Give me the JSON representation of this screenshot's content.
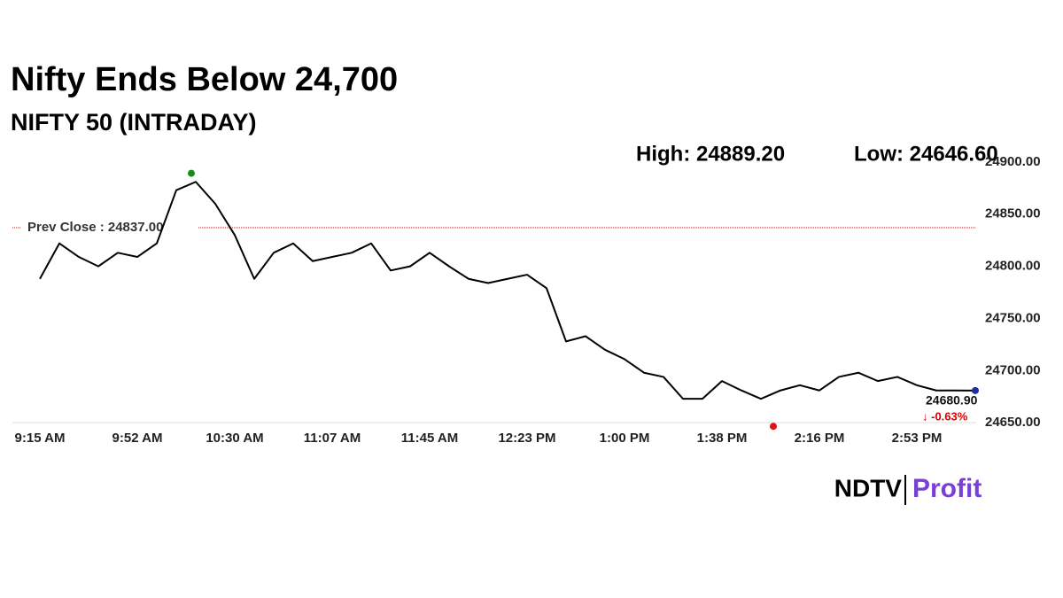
{
  "chart_data": {
    "type": "line",
    "title": "Nifty Ends Below 24,700",
    "subtitle": "NIFTY 50 (INTRADAY)",
    "high_text": "High: 24889.20",
    "high": 24889.2,
    "low_text": "Low: 24646.60",
    "low": 24646.6,
    "prev_close_text": "Prev Close : 24837.00",
    "prev_close": 24837,
    "last_price_text": "24680.90",
    "change_text": "↓ -0.63%",
    "categories": [
      "9:15 AM",
      null,
      null,
      null,
      null,
      "9:52 AM",
      null,
      null,
      null,
      null,
      "10:30 AM",
      null,
      null,
      null,
      null,
      "11:07 AM",
      null,
      null,
      null,
      null,
      "11:45 AM",
      null,
      null,
      null,
      null,
      "12:23 PM",
      null,
      null,
      null,
      null,
      "1:00 PM",
      null,
      null,
      null,
      null,
      "1:38 PM",
      null,
      null,
      null,
      null,
      "2:16 PM",
      null,
      null,
      null,
      null,
      "2:53 PM",
      null,
      null,
      null
    ],
    "series": [
      {
        "name": "NIFTY 50",
        "color": "#000000",
        "values": [
          24788,
          24822,
          24809,
          24800,
          24813,
          24809,
          24822,
          24873,
          24881,
          24860,
          24830,
          24788,
          24813,
          24822,
          24805,
          24809,
          24813,
          24822,
          24796,
          24800,
          24813,
          24800,
          24788,
          24784,
          24788,
          24792,
          24779,
          24728,
          24733,
          24720,
          24711,
          24698,
          24694,
          24673,
          24673,
          24690,
          24681,
          24673,
          24681,
          24686,
          24681,
          24694,
          24698,
          24690,
          24694,
          24686,
          24681,
          24681,
          24680.9
        ]
      }
    ],
    "ylim": [
      24640,
      24905
    ],
    "yticks": [
      {
        "value": 24650,
        "label": "24650.00"
      },
      {
        "value": 24700,
        "label": "24700.00"
      },
      {
        "value": 24750,
        "label": "24750.00"
      },
      {
        "value": 24800,
        "label": "24800.00"
      },
      {
        "value": 24850,
        "label": "24850.00"
      },
      {
        "value": 24900,
        "label": "24900.00"
      }
    ],
    "brand": {
      "left": "NDTV",
      "right": "Profit"
    }
  }
}
